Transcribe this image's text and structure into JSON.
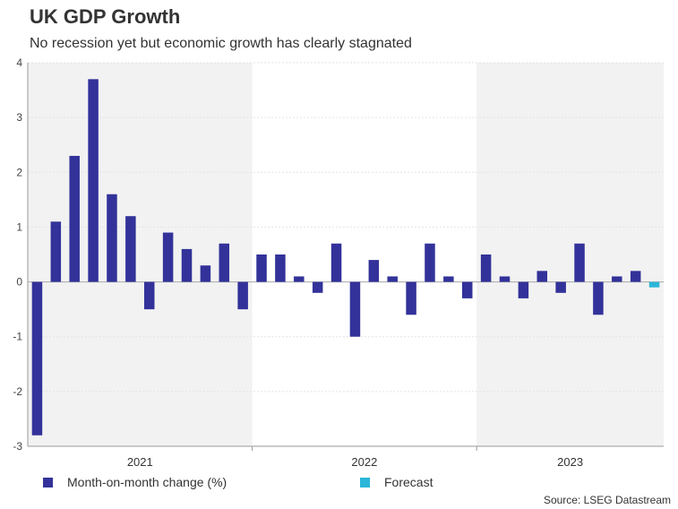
{
  "chart_data": {
    "type": "bar",
    "title": "UK GDP Growth",
    "subtitle": "No recession yet but economic growth has clearly stagnated",
    "ylim": [
      -3,
      4
    ],
    "yticks": [
      "4",
      "3",
      "2",
      "1",
      "0",
      "-1",
      "-2",
      "-3"
    ],
    "year_labels": [
      "2021",
      "2022",
      "2023"
    ],
    "series": [
      {
        "name": "Month-on-month change (%)",
        "color": "#32329a",
        "values": [
          -2.8,
          1.1,
          2.3,
          3.7,
          1.6,
          1.2,
          -0.5,
          0.9,
          0.6,
          0.3,
          0.7,
          -0.5,
          0.5,
          0.5,
          0.1,
          -0.2,
          0.7,
          -1.0,
          0.4,
          0.1,
          -0.6,
          0.7,
          0.1,
          -0.3,
          0.5,
          0.1,
          -0.3,
          0.2,
          -0.2,
          0.7,
          -0.6,
          0.1,
          0.2,
          null
        ]
      },
      {
        "name": "Forecast",
        "color": "#29b6d8",
        "values": [
          null,
          null,
          null,
          null,
          null,
          null,
          null,
          null,
          null,
          null,
          null,
          null,
          null,
          null,
          null,
          null,
          null,
          null,
          null,
          null,
          null,
          null,
          null,
          null,
          null,
          null,
          null,
          null,
          null,
          null,
          null,
          null,
          null,
          -0.1
        ]
      }
    ]
  },
  "legend": {
    "series_label": "Month-on-month change (%)",
    "forecast_label": "Forecast",
    "series_color": "#32329a",
    "forecast_color": "#29b6d8"
  },
  "source": "Source: LSEG Datastream"
}
